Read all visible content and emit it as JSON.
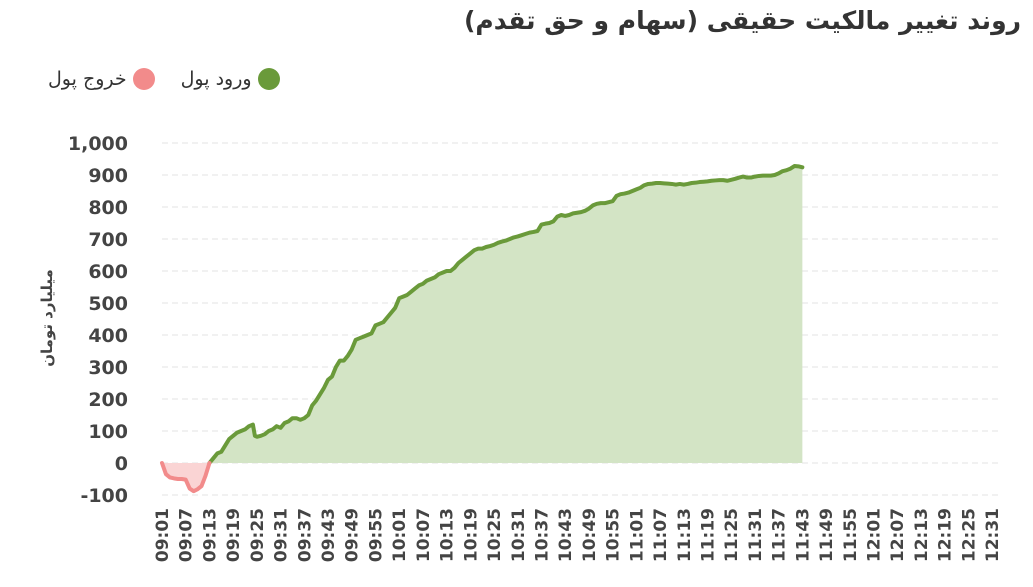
{
  "chart_data": {
    "type": "area",
    "title": "روند تغییر مالکیت حقیقی (سهام و حق تقدم)",
    "ylabel": "میلیارد تومان",
    "xlabel": "",
    "ylim": [
      -100,
      1000
    ],
    "yticks": [
      -100,
      0,
      100,
      200,
      300,
      400,
      500,
      600,
      700,
      800,
      900,
      1000
    ],
    "ytick_labels": [
      "-100",
      "0",
      "100",
      "200",
      "300",
      "400",
      "500",
      "600",
      "700",
      "800",
      "900",
      "1,000"
    ],
    "x_start_minute": 541,
    "x_end_minute": 753,
    "xticks": [
      "09:01",
      "09:07",
      "09:13",
      "09:19",
      "09:25",
      "09:31",
      "09:37",
      "09:43",
      "09:49",
      "09:55",
      "10:01",
      "10:07",
      "10:13",
      "10:19",
      "10:25",
      "10:31",
      "10:37",
      "10:43",
      "10:49",
      "10:55",
      "11:01",
      "11:07",
      "11:13",
      "11:19",
      "11:25",
      "11:31",
      "11:37",
      "11:43",
      "11:49",
      "11:55",
      "12:01",
      "12:07",
      "12:13",
      "12:19",
      "12:25",
      "12:31"
    ],
    "grid": true,
    "legend_position": "top-left",
    "series": [
      {
        "name": "ورود پول",
        "color": "#6a9a3a",
        "fill": "#d3e4c5",
        "points": [
          [
            553,
            0
          ],
          [
            554,
            15
          ],
          [
            555,
            30
          ],
          [
            556,
            35
          ],
          [
            557,
            55
          ],
          [
            558,
            75
          ],
          [
            559,
            85
          ],
          [
            560,
            95
          ],
          [
            561,
            100
          ],
          [
            562,
            105
          ],
          [
            563,
            115
          ],
          [
            564,
            120
          ],
          [
            564.5,
            85
          ],
          [
            565,
            82
          ],
          [
            566,
            85
          ],
          [
            567,
            90
          ],
          [
            568,
            100
          ],
          [
            569,
            105
          ],
          [
            570,
            115
          ],
          [
            571,
            110
          ],
          [
            572,
            125
          ],
          [
            573,
            130
          ],
          [
            574,
            140
          ],
          [
            575,
            140
          ],
          [
            576,
            135
          ],
          [
            577,
            140
          ],
          [
            578,
            150
          ],
          [
            579,
            180
          ],
          [
            580,
            195
          ],
          [
            581,
            215
          ],
          [
            582,
            235
          ],
          [
            583,
            260
          ],
          [
            584,
            270
          ],
          [
            585,
            300
          ],
          [
            586,
            320
          ],
          [
            587,
            320
          ],
          [
            588,
            335
          ],
          [
            589,
            355
          ],
          [
            590,
            385
          ],
          [
            591,
            390
          ],
          [
            592,
            395
          ],
          [
            593,
            400
          ],
          [
            594,
            405
          ],
          [
            595,
            430
          ],
          [
            596,
            435
          ],
          [
            597,
            440
          ],
          [
            598,
            455
          ],
          [
            599,
            470
          ],
          [
            600,
            485
          ],
          [
            601,
            515
          ],
          [
            602,
            520
          ],
          [
            603,
            525
          ],
          [
            604,
            535
          ],
          [
            605,
            545
          ],
          [
            606,
            555
          ],
          [
            607,
            560
          ],
          [
            608,
            570
          ],
          [
            609,
            575
          ],
          [
            610,
            580
          ],
          [
            611,
            590
          ],
          [
            612,
            595
          ],
          [
            613,
            600
          ],
          [
            614,
            600
          ],
          [
            615,
            610
          ],
          [
            616,
            625
          ],
          [
            617,
            635
          ],
          [
            618,
            645
          ],
          [
            619,
            655
          ],
          [
            620,
            665
          ],
          [
            621,
            670
          ],
          [
            622,
            670
          ],
          [
            623,
            675
          ],
          [
            624,
            678
          ],
          [
            625,
            682
          ],
          [
            626,
            688
          ],
          [
            627,
            692
          ],
          [
            628,
            695
          ],
          [
            629,
            700
          ],
          [
            630,
            705
          ],
          [
            631,
            708
          ],
          [
            632,
            712
          ],
          [
            633,
            716
          ],
          [
            634,
            720
          ],
          [
            635,
            722
          ],
          [
            636,
            725
          ],
          [
            637,
            745
          ],
          [
            638,
            748
          ],
          [
            639,
            750
          ],
          [
            640,
            755
          ],
          [
            641,
            770
          ],
          [
            642,
            775
          ],
          [
            643,
            772
          ],
          [
            644,
            775
          ],
          [
            645,
            780
          ],
          [
            646,
            782
          ],
          [
            647,
            784
          ],
          [
            648,
            788
          ],
          [
            649,
            795
          ],
          [
            650,
            805
          ],
          [
            651,
            810
          ],
          [
            652,
            812
          ],
          [
            653,
            812
          ],
          [
            654,
            815
          ],
          [
            655,
            818
          ],
          [
            656,
            835
          ],
          [
            657,
            840
          ],
          [
            658,
            842
          ],
          [
            659,
            845
          ],
          [
            660,
            850
          ],
          [
            661,
            855
          ],
          [
            662,
            860
          ],
          [
            663,
            868
          ],
          [
            664,
            872
          ],
          [
            665,
            873
          ],
          [
            666,
            875
          ],
          [
            667,
            875
          ],
          [
            668,
            874
          ],
          [
            669,
            873
          ],
          [
            670,
            872
          ],
          [
            671,
            870
          ],
          [
            672,
            872
          ],
          [
            673,
            870
          ],
          [
            674,
            872
          ],
          [
            675,
            875
          ],
          [
            676,
            876
          ],
          [
            677,
            878
          ],
          [
            678,
            879
          ],
          [
            679,
            880
          ],
          [
            680,
            882
          ],
          [
            681,
            883
          ],
          [
            682,
            884
          ],
          [
            683,
            884
          ],
          [
            684,
            882
          ],
          [
            685,
            885
          ],
          [
            686,
            888
          ],
          [
            687,
            892
          ],
          [
            688,
            895
          ],
          [
            689,
            892
          ],
          [
            690,
            892
          ],
          [
            691,
            895
          ],
          [
            692,
            897
          ],
          [
            693,
            898
          ],
          [
            694,
            898
          ],
          [
            695,
            898
          ],
          [
            696,
            900
          ],
          [
            697,
            905
          ],
          [
            698,
            912
          ],
          [
            699,
            915
          ],
          [
            700,
            920
          ],
          [
            701,
            928
          ],
          [
            702,
            927
          ],
          [
            703,
            924
          ]
        ]
      },
      {
        "name": "خروج پول",
        "color": "#f28b8b",
        "fill": "#fad4d4",
        "points": [
          [
            541,
            0
          ],
          [
            542,
            -35
          ],
          [
            543,
            -45
          ],
          [
            544,
            -48
          ],
          [
            545,
            -50
          ],
          [
            546,
            -50
          ],
          [
            547,
            -52
          ],
          [
            548,
            -80
          ],
          [
            549,
            -88
          ],
          [
            550,
            -82
          ],
          [
            551,
            -72
          ],
          [
            552,
            -40
          ],
          [
            553,
            0
          ]
        ]
      }
    ]
  }
}
